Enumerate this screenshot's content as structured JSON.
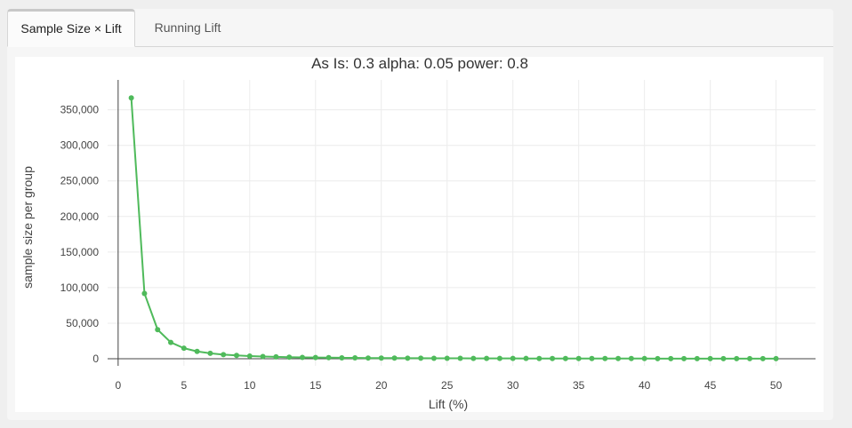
{
  "tabs": [
    {
      "label": "Sample Size × Lift",
      "active": true
    },
    {
      "label": "Running Lift",
      "active": false
    }
  ],
  "colors": {
    "series": "#4fba5b",
    "grid": "#ececec",
    "axis": "#444444",
    "text": "#444444"
  },
  "chart_data": {
    "type": "line",
    "title": "As Is: 0.3 alpha: 0.05 power: 0.8",
    "xlabel": "Lift (%)",
    "ylabel": "sample size per group",
    "xlim": [
      -0.8,
      53
    ],
    "ylim": [
      -10000,
      392000
    ],
    "xticks": [
      0,
      5,
      10,
      15,
      20,
      25,
      30,
      35,
      40,
      45,
      50
    ],
    "yticks": [
      0,
      50000,
      100000,
      150000,
      200000,
      250000,
      300000,
      350000
    ],
    "ytick_labels": [
      "0",
      "50,000",
      "100,000",
      "150,000",
      "200,000",
      "250,000",
      "300,000",
      "350,000"
    ],
    "grid": true,
    "series": [
      {
        "markers": true,
        "x": [
          1,
          2,
          3,
          4,
          5,
          6,
          7,
          8,
          9,
          10,
          11,
          12,
          13,
          14,
          15,
          16,
          17,
          18,
          19,
          20,
          21,
          22,
          23,
          24,
          25,
          26,
          27,
          28,
          29,
          30,
          31,
          32,
          33,
          34,
          35,
          36,
          37,
          38,
          39,
          40,
          41,
          42,
          43,
          44,
          45,
          46,
          47,
          48,
          49,
          50
        ],
        "y": [
          366700,
          91800,
          40900,
          23000,
          14800,
          10300,
          7600,
          5800,
          4600,
          3800,
          3100,
          2600,
          2200,
          1900,
          1700,
          1500,
          1300,
          1200,
          1000,
          950,
          860,
          780,
          710,
          650,
          600,
          550,
          510,
          470,
          440,
          410,
          380,
          360,
          340,
          320,
          300,
          280,
          265,
          250,
          240,
          225,
          215,
          205,
          195,
          185,
          178,
          170,
          162,
          155,
          149,
          143
        ]
      }
    ]
  }
}
